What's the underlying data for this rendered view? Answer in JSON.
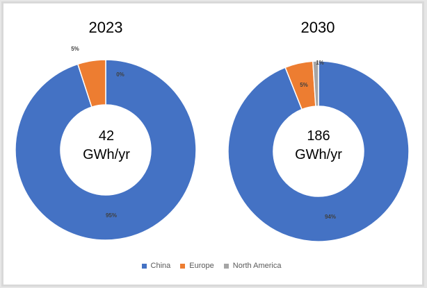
{
  "chart_data": [
    {
      "type": "pie",
      "variant": "donut",
      "title": "2023",
      "center_value": "42",
      "center_unit": "GWh/yr",
      "categories": [
        "China",
        "Europe",
        "North America"
      ],
      "values": [
        95,
        5,
        0
      ],
      "labels": [
        "95%",
        "5%",
        "0%"
      ]
    },
    {
      "type": "pie",
      "variant": "donut",
      "title": "2030",
      "center_value": "186",
      "center_unit": "GWh/yr",
      "categories": [
        "China",
        "Europe",
        "North America"
      ],
      "values": [
        94,
        5,
        1
      ],
      "labels": [
        "94%",
        "5%",
        "1%"
      ]
    }
  ],
  "legend": [
    {
      "label": "China",
      "color": "#4472c4"
    },
    {
      "label": "Europe",
      "color": "#ed7d31"
    },
    {
      "label": "North America",
      "color": "#a5a5a5"
    }
  ]
}
